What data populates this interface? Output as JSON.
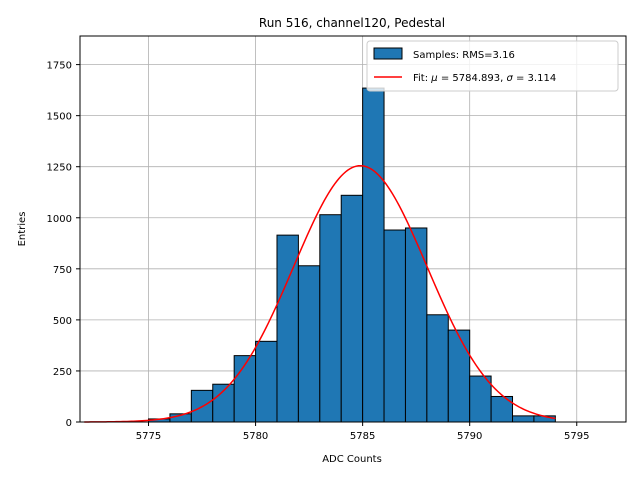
{
  "chart_data": {
    "type": "bar",
    "title": "Run 516, channel120, Pedestal",
    "xlabel": "ADC Counts",
    "ylabel": "Entries",
    "xlim": [
      5771.8,
      5797.3
    ],
    "ylim": [
      0,
      1890
    ],
    "xticks": [
      5775,
      5780,
      5785,
      5790,
      5795
    ],
    "yticks": [
      0,
      250,
      500,
      750,
      1000,
      1250,
      1500,
      1750
    ],
    "grid": true,
    "legend_position": "top-right",
    "bin_width": 1,
    "bins": [
      {
        "x0": 5775,
        "value": 15
      },
      {
        "x0": 5776,
        "value": 40
      },
      {
        "x0": 5777,
        "value": 155
      },
      {
        "x0": 5778,
        "value": 185
      },
      {
        "x0": 5779,
        "value": 325
      },
      {
        "x0": 5780,
        "value": 395
      },
      {
        "x0": 5781,
        "value": 915
      },
      {
        "x0": 5782,
        "value": 765
      },
      {
        "x0": 5783,
        "value": 1015
      },
      {
        "x0": 5784,
        "value": 1110
      },
      {
        "x0": 5785,
        "value": 1635
      },
      {
        "x0": 5786,
        "value": 940
      },
      {
        "x0": 5787,
        "value": 950
      },
      {
        "x0": 5788,
        "value": 525
      },
      {
        "x0": 5789,
        "value": 450
      },
      {
        "x0": 5790,
        "value": 225
      },
      {
        "x0": 5791,
        "value": 125
      },
      {
        "x0": 5792,
        "value": 30
      },
      {
        "x0": 5793,
        "value": 30
      }
    ],
    "fit": {
      "mu": 5784.893,
      "sigma": 3.114,
      "amplitude": 1255,
      "x_range": [
        5772,
        5794
      ]
    },
    "series": [
      {
        "name": "Samples: RMS=3.16",
        "type": "histogram",
        "color": "#1f77b4",
        "edgecolor": "#000000"
      },
      {
        "name_prefix": "Fit: ",
        "mu_symbol": "μ",
        "mu_text": " = 5784.893, ",
        "sigma_symbol": "σ",
        "sigma_text": " = 3.114",
        "type": "line",
        "color": "#ff0000"
      }
    ]
  }
}
